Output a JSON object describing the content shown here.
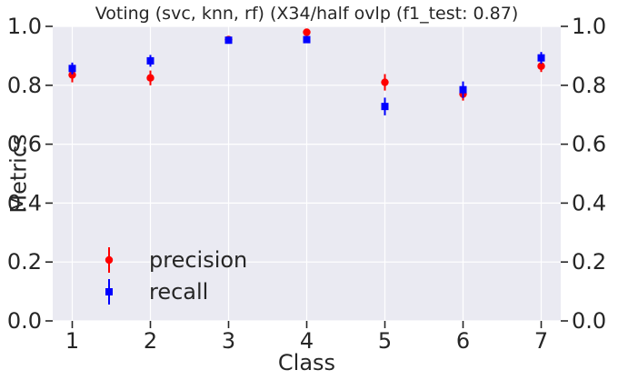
{
  "chart_data": {
    "type": "scatter",
    "title": "Voting (svc, knn, rf) (X34/half ovlp (f1_test: 0.87)",
    "xlabel": "Class",
    "ylabel": "Metrics",
    "categories": [
      "1",
      "2",
      "3",
      "4",
      "5",
      "6",
      "7"
    ],
    "x": [
      1,
      2,
      3,
      4,
      5,
      6,
      7
    ],
    "xlim": [
      0.75,
      7.25
    ],
    "ylim": [
      0.0,
      1.0
    ],
    "yticks": [
      "0.0",
      "0.2",
      "0.4",
      "0.6",
      "0.8",
      "1.0"
    ],
    "grid": true,
    "right_axis_mirrored": true,
    "legend_position": "lower-left",
    "background_color": "#eaeaf2",
    "series": [
      {
        "name": "precision",
        "color": "#ff0000",
        "marker": "circle",
        "values": [
          0.835,
          0.825,
          0.955,
          0.98,
          0.81,
          0.77,
          0.865
        ],
        "errors": [
          0.025,
          0.025,
          0.01,
          0.008,
          0.028,
          0.022,
          0.02
        ]
      },
      {
        "name": "recall",
        "color": "#0000ff",
        "marker": "square",
        "values": [
          0.857,
          0.883,
          0.953,
          0.955,
          0.728,
          0.785,
          0.893
        ],
        "errors": [
          0.02,
          0.02,
          0.012,
          0.012,
          0.03,
          0.028,
          0.02
        ]
      }
    ]
  }
}
